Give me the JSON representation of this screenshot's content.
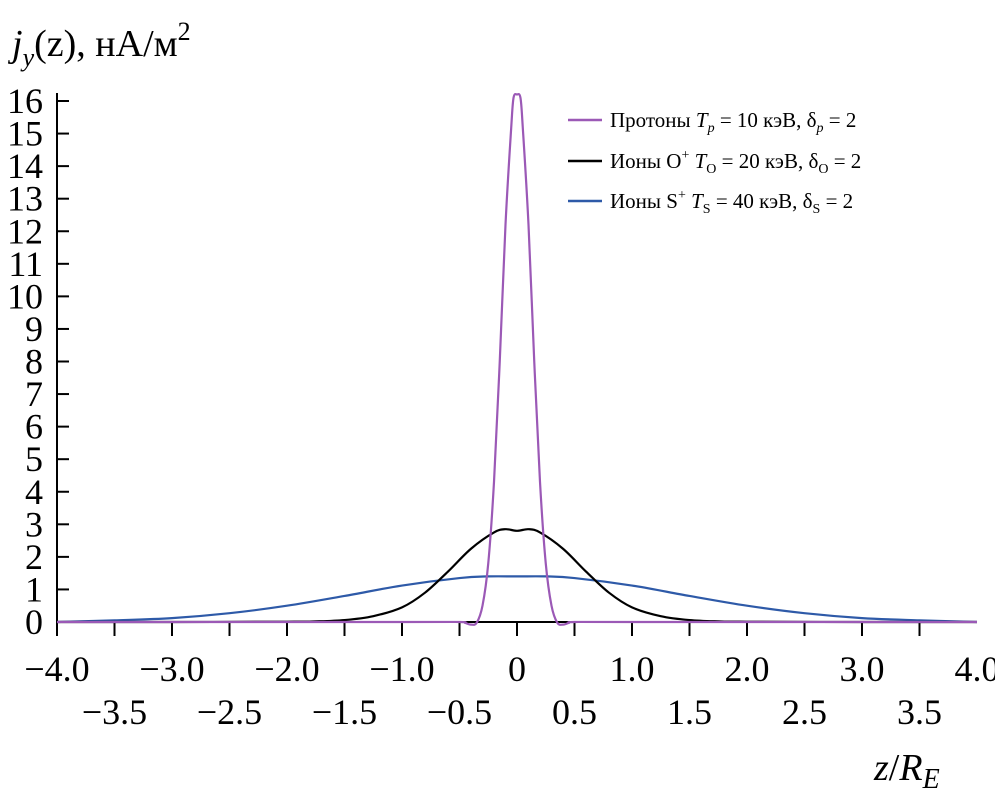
{
  "chart_data": {
    "type": "line",
    "ylabel": "j_y(z), нА/м²",
    "ylabel_parts": {
      "j": "j",
      "sub": "y",
      "rest": "(z), нА/м",
      "sup": "2"
    },
    "xlabel_parts": {
      "z": "z",
      "slash": "/",
      "R": "R",
      "sub": "E"
    },
    "xlim": [
      -4.0,
      4.0
    ],
    "ylim": [
      0,
      16
    ],
    "x_ticks_major": [
      "−4.0",
      "−3.0",
      "−2.0",
      "−1.0",
      "0",
      "1.0",
      "2.0",
      "3.0",
      "4.0"
    ],
    "x_ticks_minor": [
      "−3.5",
      "−2.5",
      "−1.5",
      "−0.5",
      "0.5",
      "1.5",
      "2.5",
      "3.5"
    ],
    "y_ticks": [
      "0",
      "1",
      "2",
      "3",
      "4",
      "5",
      "6",
      "7",
      "8",
      "9",
      "10",
      "11",
      "12",
      "13",
      "14",
      "15",
      "16"
    ],
    "legend_placement": "top-right",
    "grid": false,
    "series": [
      {
        "legend": {
          "a": "Протоны ",
          "b": "T",
          "c": "p",
          "d": " = 10 кэВ, δ",
          "e": "p",
          "f": " = 2"
        },
        "color": "#9b59b6",
        "points": [
          [
            -4.0,
            0
          ],
          [
            -1.0,
            0
          ],
          [
            -0.5,
            0
          ],
          [
            -0.45,
            -0.03
          ],
          [
            -0.4,
            -0.08
          ],
          [
            -0.35,
            -0.02
          ],
          [
            -0.3,
            0.5
          ],
          [
            -0.25,
            1.8
          ],
          [
            -0.2,
            4.3
          ],
          [
            -0.15,
            8.0
          ],
          [
            -0.1,
            12.2
          ],
          [
            -0.05,
            15.2
          ],
          [
            -0.03,
            16.1
          ],
          [
            0.0,
            16.2
          ],
          [
            0.03,
            16.1
          ],
          [
            0.05,
            15.2
          ],
          [
            0.1,
            12.2
          ],
          [
            0.15,
            8.0
          ],
          [
            0.2,
            4.3
          ],
          [
            0.25,
            1.8
          ],
          [
            0.3,
            0.5
          ],
          [
            0.35,
            -0.02
          ],
          [
            0.4,
            -0.08
          ],
          [
            0.45,
            -0.03
          ],
          [
            0.5,
            0
          ],
          [
            1.0,
            0
          ],
          [
            4.0,
            0
          ]
        ]
      },
      {
        "legend": {
          "a": "Ионы O",
          "b": "+",
          "c": " ",
          "d": "T",
          "e": "O",
          "f": " = 20 кэВ, δ",
          "g": "O",
          "h": " = 2"
        },
        "color": "#000000",
        "points": [
          [
            -4.0,
            0
          ],
          [
            -3.0,
            0
          ],
          [
            -2.0,
            0.01
          ],
          [
            -1.75,
            0.02
          ],
          [
            -1.5,
            0.06
          ],
          [
            -1.25,
            0.18
          ],
          [
            -1.0,
            0.45
          ],
          [
            -0.8,
            0.9
          ],
          [
            -0.6,
            1.55
          ],
          [
            -0.4,
            2.25
          ],
          [
            -0.2,
            2.75
          ],
          [
            -0.1,
            2.85
          ],
          [
            0.0,
            2.8
          ],
          [
            0.1,
            2.85
          ],
          [
            0.2,
            2.75
          ],
          [
            0.4,
            2.25
          ],
          [
            0.6,
            1.55
          ],
          [
            0.8,
            0.9
          ],
          [
            1.0,
            0.45
          ],
          [
            1.25,
            0.18
          ],
          [
            1.5,
            0.06
          ],
          [
            1.75,
            0.02
          ],
          [
            2.0,
            0.01
          ],
          [
            3.0,
            0
          ],
          [
            4.0,
            0
          ]
        ]
      },
      {
        "legend": {
          "a": "Ионы S",
          "b": "+",
          "c": " ",
          "d": "T",
          "e": "S",
          "f": " = 40 кэВ, δ",
          "g": "S",
          "h": " = 2"
        },
        "color": "#2e5aa8",
        "points": [
          [
            -4.0,
            0.0
          ],
          [
            -3.5,
            0.05
          ],
          [
            -3.0,
            0.12
          ],
          [
            -2.5,
            0.27
          ],
          [
            -2.0,
            0.5
          ],
          [
            -1.5,
            0.8
          ],
          [
            -1.0,
            1.12
          ],
          [
            -0.5,
            1.35
          ],
          [
            -0.25,
            1.4
          ],
          [
            0.0,
            1.4
          ],
          [
            0.25,
            1.4
          ],
          [
            0.5,
            1.35
          ],
          [
            1.0,
            1.12
          ],
          [
            1.5,
            0.8
          ],
          [
            2.0,
            0.5
          ],
          [
            2.5,
            0.27
          ],
          [
            3.0,
            0.12
          ],
          [
            3.5,
            0.05
          ],
          [
            4.0,
            0.0
          ]
        ]
      }
    ]
  }
}
